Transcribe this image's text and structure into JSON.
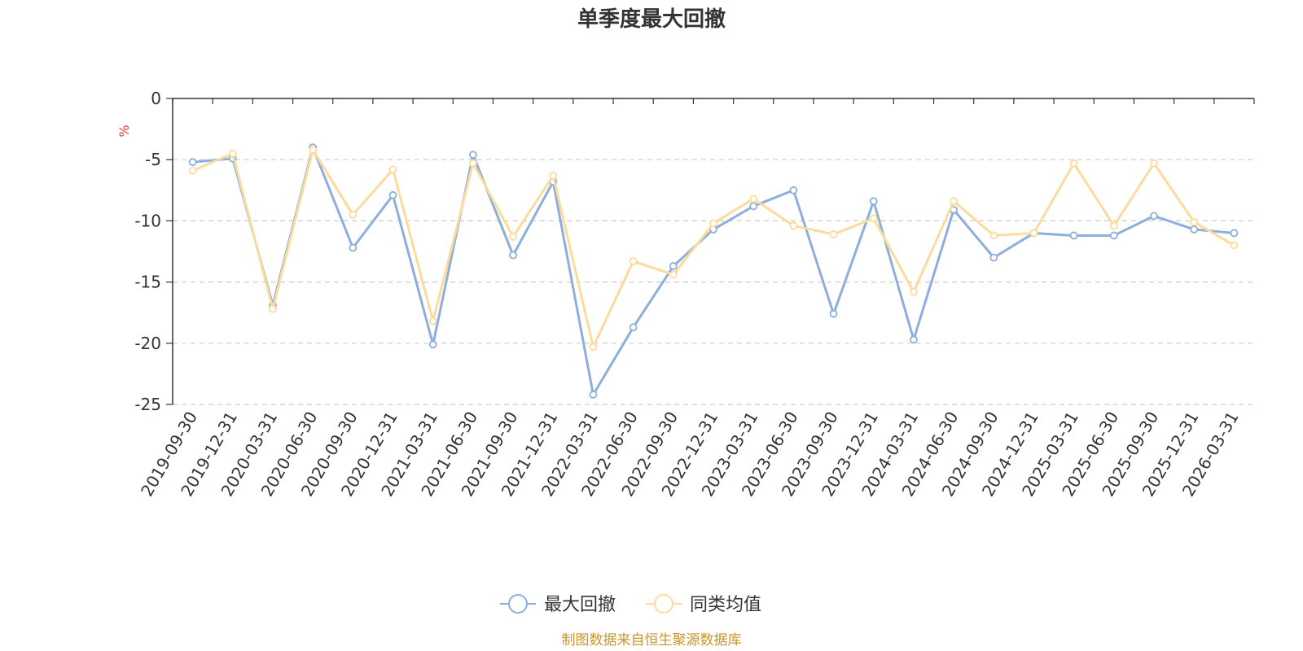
{
  "chart_data": {
    "type": "line",
    "title": "单季度最大回撤",
    "unit_label": "%",
    "categories": [
      "2019-09-30",
      "2019-12-31",
      "2020-03-31",
      "2020-06-30",
      "2020-09-30",
      "2020-12-31",
      "2021-03-31",
      "2021-06-30",
      "2021-09-30",
      "2021-12-31",
      "2022-03-31",
      "2022-06-30",
      "2022-09-30",
      "2022-12-31",
      "2023-03-31",
      "2023-06-30",
      "2023-09-30",
      "2023-12-31",
      "2024-03-31",
      "2024-06-30",
      "2024-09-30",
      "2024-12-31",
      "2025-03-31",
      "2025-06-30",
      "2025-09-30",
      "2025-12-31",
      "2026-03-31"
    ],
    "series": [
      {
        "name": "最大回撤",
        "color": "#8eaedb",
        "values": [
          -5.2,
          -4.9,
          -16.9,
          -4.0,
          -12.2,
          -7.9,
          -20.1,
          -4.6,
          -12.8,
          -6.8,
          -24.2,
          -18.7,
          -13.7,
          -10.7,
          -8.8,
          -7.5,
          -17.6,
          -8.4,
          -19.7,
          -9.1,
          -13.0,
          -11.0,
          -11.2,
          -11.2,
          -9.6,
          -10.7,
          -11.0
        ]
      },
      {
        "name": "同类均值",
        "color": "#fbdc9c",
        "values": [
          -5.9,
          -4.5,
          -17.2,
          -4.2,
          -9.5,
          -5.8,
          -18.2,
          -5.3,
          -11.3,
          -6.3,
          -20.3,
          -13.3,
          -14.4,
          -10.2,
          -8.2,
          -10.4,
          -11.1,
          -9.8,
          -15.8,
          -8.4,
          -11.2,
          -11.0,
          -5.3,
          -10.4,
          -5.3,
          -10.1,
          -12.0
        ]
      }
    ],
    "y_ticks": [
      "0",
      "-5",
      "-10",
      "-15",
      "-20",
      "-25"
    ],
    "ylim": [
      -25,
      0
    ],
    "grid": true,
    "legend_position": "bottom-center",
    "unit_color": "#e8332d"
  },
  "footer": {
    "source": "制图数据来自恒生聚源数据库",
    "color": "#c8962b"
  }
}
